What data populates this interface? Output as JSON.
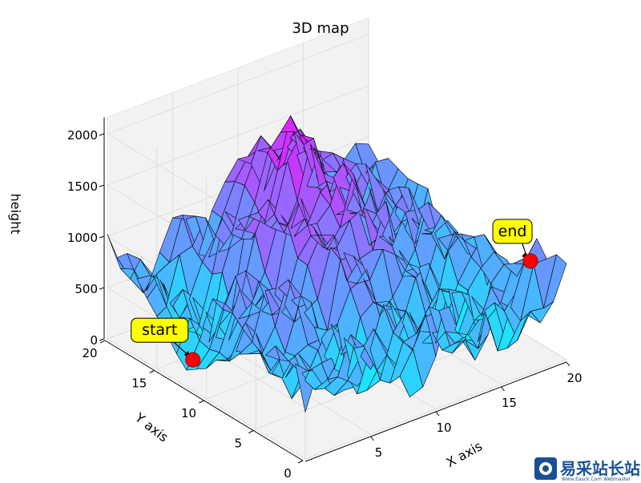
{
  "chart_data": {
    "type": "surface3d",
    "title": "3D map",
    "xlabel": "X axis",
    "ylabel": "Y axis",
    "zlabel": "height",
    "xlim": [
      0,
      20
    ],
    "ylim": [
      0,
      20
    ],
    "zlim": [
      0,
      2000
    ],
    "x_ticks": [
      "5",
      "10",
      "15",
      "20"
    ],
    "y_ticks": [
      "0",
      "5",
      "10",
      "15",
      "20"
    ],
    "z_ticks": [
      "0",
      "500",
      "1000",
      "1500",
      "2000"
    ],
    "colormap": "cool",
    "colors": {
      "low": "#00ffff",
      "high": "#ff00ff",
      "pane": "#f2f2f2",
      "grid": "#d9d9d9",
      "marker": "#ff0000",
      "annotation_box": "#ffff00"
    },
    "grid": true,
    "annotations": [
      {
        "text": "start",
        "x": 2,
        "y": 14,
        "z": 50
      },
      {
        "text": "end",
        "x": 18,
        "y": 1,
        "z": 1000
      }
    ]
  },
  "watermark": {
    "text": "易采站长站",
    "sub": "Www.Easck.Com Webmaster"
  }
}
